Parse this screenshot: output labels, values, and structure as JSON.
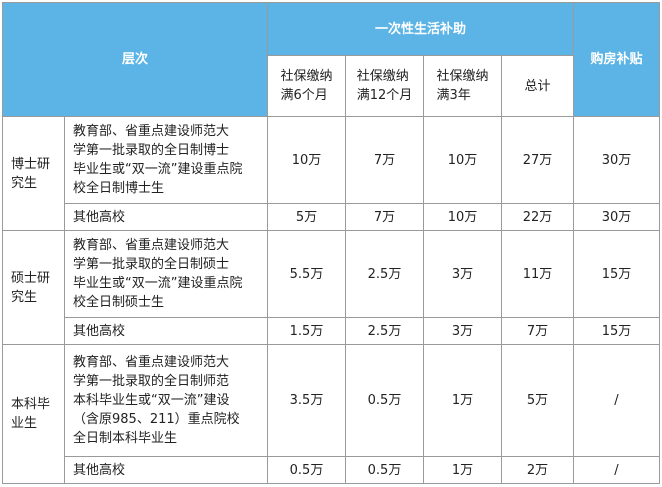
{
  "header": {
    "level": "层次",
    "living_subsidy": "一次性生活补助",
    "housing_subsidy": "购房补贴",
    "sub_cols": [
      {
        "line1": "社保缴纳",
        "line2": "满6个月"
      },
      {
        "line1": "社保缴纳",
        "line2": "满12个月"
      },
      {
        "line1": "社保缴纳",
        "line2": "满3年"
      },
      {
        "line1": "总计",
        "line2": ""
      }
    ]
  },
  "groups": [
    {
      "category": {
        "line1": "博士研",
        "line2": "究生"
      },
      "rows": [
        {
          "desc": [
            "教育部、省重点建设师范大",
            "学第一批录取的全日制博士",
            "毕业生或“双一流”建设重点院",
            "校全日制博士生"
          ],
          "values": [
            "10万",
            "7万",
            "10万",
            "27万",
            "30万"
          ]
        },
        {
          "desc": [
            "其他高校"
          ],
          "values": [
            "5万",
            "7万",
            "10万",
            "22万",
            "30万"
          ]
        }
      ]
    },
    {
      "category": {
        "line1": "硕士研",
        "line2": "究生"
      },
      "rows": [
        {
          "desc": [
            "教育部、省重点建设师范大",
            "学第一批录取的全日制硕士",
            "毕业生或“双一流”建设重点院",
            "校全日制硕士生"
          ],
          "values": [
            "5.5万",
            "2.5万",
            "3万",
            "11万",
            "15万"
          ]
        },
        {
          "desc": [
            "其他高校"
          ],
          "values": [
            "1.5万",
            "2.5万",
            "3万",
            "7万",
            "15万"
          ]
        }
      ]
    },
    {
      "category": {
        "line1": "本科毕",
        "line2": "业生"
      },
      "rows": [
        {
          "desc": [
            "教育部、省重点建设师范大",
            "学第一批录取的全日制师范",
            "本科毕业生或“双一流”建设",
            "（含原985、211）重点院校",
            "全日制本科毕业生"
          ],
          "values": [
            "3.5万",
            "0.5万",
            "1万",
            "5万",
            "/"
          ]
        },
        {
          "desc": [
            "其他高校"
          ],
          "values": [
            "0.5万",
            "0.5万",
            "1万",
            "2万",
            "/"
          ]
        }
      ]
    }
  ],
  "colors": {
    "header_bg": "#5bb4e5",
    "header_text": "#ffffff",
    "border": "#9a9a9a"
  }
}
